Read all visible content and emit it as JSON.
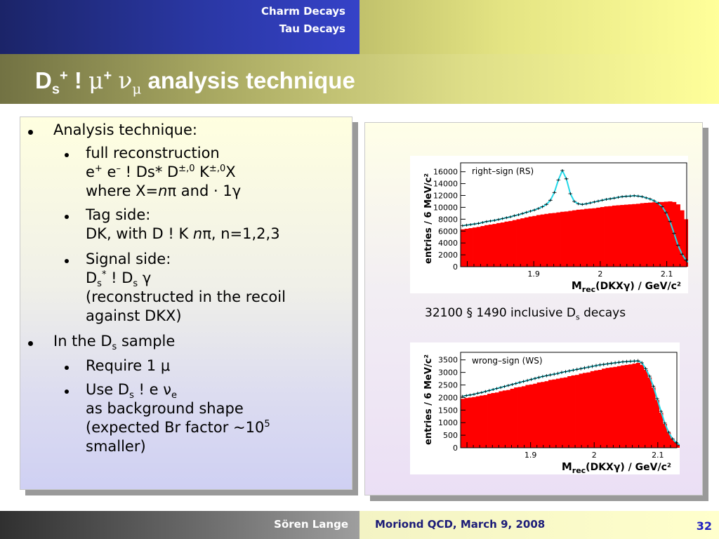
{
  "header": {
    "nav_items": [
      "Charm Decays",
      "Tau Decays"
    ],
    "title": {
      "text": "D",
      "sub": "s",
      "sup1": "+",
      "arrow": "!",
      "mu": "μ",
      "sup2": "+",
      "nu": "ν",
      "sub2": "μ",
      "rest": "analysis technique"
    }
  },
  "left_panel": {
    "l1": "Analysis technique:",
    "l2": "full reconstruction",
    "l3": {
      "a": "e",
      "b": "+",
      "c": " e",
      "d": "–",
      "e": " ! Ds* D",
      "f": "±,0",
      "g": " K",
      "h": "±,0",
      "i": "X"
    },
    "l4": {
      "a": "where X=",
      "b": "n",
      "c": "π",
      "d": " and · 1",
      "e": "γ"
    },
    "l5": "Tag side:",
    "l6": {
      "a": "DK, with D ! K ",
      "b": "n",
      "c": "π",
      "d": ", n=1,2,3"
    },
    "l7": "Signal side:",
    "l8": {
      "a": "D",
      "b": "s",
      "c": "*",
      "d": " ! D",
      "e": "s",
      "f": " ",
      "g": "γ"
    },
    "l9": "(reconstructed in the recoil",
    "l10": "against DKX)",
    "l11": {
      "a": "In the D",
      "b": "s",
      "c": " sample"
    },
    "l12": {
      "a": "Require 1 ",
      "b": "μ"
    },
    "l13": {
      "a": "Use D",
      "b": "s",
      "c": " ! e ",
      "d": "ν",
      "e": "e"
    },
    "l14": "as background shape",
    "l15": {
      "a": "(expected Br factor ~10",
      "b": "5"
    },
    "l16": "smaller)"
  },
  "caption": {
    "a": "32100 § 1490 inclusive D",
    "b": "s",
    "c": " decays"
  },
  "chart_data": [
    {
      "type": "bar",
      "legend": "right–sign (RS)",
      "ylabel": "entries / 6 MeV/c²",
      "xlabel": {
        "m": "M",
        "sub": "rec",
        "rest": "(DKXγ) / GeV/c²"
      },
      "x_start": 1.79,
      "x_end": 2.13,
      "bin_width": 0.006,
      "ylim": [
        0,
        17500
      ],
      "yticks": [
        0,
        2000,
        4000,
        6000,
        8000,
        10000,
        12000,
        14000,
        16000
      ],
      "xticks": [
        1.9,
        2.0,
        2.1
      ],
      "xtick_labels": [
        "1.9",
        "2",
        "2.1"
      ],
      "signal_hist": [
        6300,
        6400,
        6500,
        6600,
        6700,
        6850,
        7000,
        7100,
        7200,
        7350,
        7450,
        7600,
        7700,
        7850,
        8000,
        8150,
        8300,
        8450,
        8550,
        8700,
        8800,
        8900,
        9000,
        9050,
        9150,
        9250,
        9300,
        9400,
        9500,
        9600,
        9650,
        9750,
        9800,
        9850,
        9950,
        10050,
        10150,
        10200,
        10300,
        10350,
        10400,
        10450,
        10500,
        10550,
        10600,
        10700,
        10750,
        10800,
        10850,
        10900,
        10900,
        10950,
        11000,
        10900,
        10500,
        9500,
        8000,
        6000,
        4000,
        2300,
        1300,
        700,
        350,
        200,
        120,
        80,
        60
      ],
      "total_curve": [
        6900,
        7000,
        7100,
        7200,
        7300,
        7450,
        7600,
        7700,
        7800,
        7950,
        8100,
        8250,
        8400,
        8600,
        8750,
        8950,
        9150,
        9350,
        9550,
        9800,
        10100,
        10500,
        11200,
        12500,
        14600,
        16200,
        14800,
        12300,
        11000,
        10600,
        10500,
        10600,
        10750,
        10900,
        11050,
        11200,
        11350,
        11450,
        11550,
        11700,
        11800,
        11850,
        11900,
        11950,
        11900,
        11800,
        11600,
        11400,
        11100,
        10700,
        10100,
        9100,
        7600,
        5600,
        3600,
        2100,
        1100,
        550,
        280,
        150,
        100,
        70,
        55,
        45,
        40,
        35,
        30
      ]
    },
    {
      "type": "bar",
      "legend": "wrong–sign (WS)",
      "ylabel": "entries / 6 MeV/c²",
      "xlabel": {
        "m": "M",
        "sub": "rec",
        "rest": "(DKXγ) / GeV/c²"
      },
      "x_start": 1.79,
      "x_end": 2.13,
      "bin_width": 0.006,
      "ylim": [
        0,
        3800
      ],
      "yticks": [
        0,
        500,
        1000,
        1500,
        2000,
        2500,
        3000,
        3500
      ],
      "xticks": [
        1.9,
        2.0,
        2.1
      ],
      "xtick_labels": [
        "1.9",
        "2",
        "2.1"
      ],
      "signal_hist": [
        1950,
        1980,
        2000,
        2020,
        2050,
        2080,
        2100,
        2150,
        2180,
        2200,
        2250,
        2280,
        2300,
        2350,
        2400,
        2420,
        2450,
        2500,
        2520,
        2550,
        2600,
        2620,
        2650,
        2700,
        2720,
        2750,
        2780,
        2800,
        2850,
        2880,
        2900,
        2950,
        2980,
        3000,
        3050,
        3080,
        3100,
        3150,
        3180,
        3200,
        3220,
        3250,
        3280,
        3300,
        3320,
        3350,
        3380,
        3300,
        3100,
        2800,
        2400,
        1900,
        1400,
        950,
        600,
        350,
        200,
        100,
        50,
        30,
        20
      ],
      "total_curve": [
        2050,
        2080,
        2100,
        2130,
        2170,
        2200,
        2240,
        2280,
        2320,
        2360,
        2400,
        2440,
        2480,
        2520,
        2560,
        2600,
        2640,
        2680,
        2720,
        2760,
        2800,
        2840,
        2870,
        2900,
        2930,
        2960,
        3000,
        3030,
        3060,
        3090,
        3120,
        3150,
        3180,
        3210,
        3240,
        3270,
        3300,
        3320,
        3340,
        3360,
        3380,
        3400,
        3420,
        3430,
        3440,
        3450,
        3460,
        3380,
        3150,
        2850,
        2450,
        1950,
        1450,
        980,
        620,
        360,
        200,
        100,
        50,
        30,
        20
      ]
    }
  ],
  "footer": {
    "presenter": "Sören Lange",
    "conference": "Moriond QCD, March 9, 2008",
    "page": "32"
  }
}
